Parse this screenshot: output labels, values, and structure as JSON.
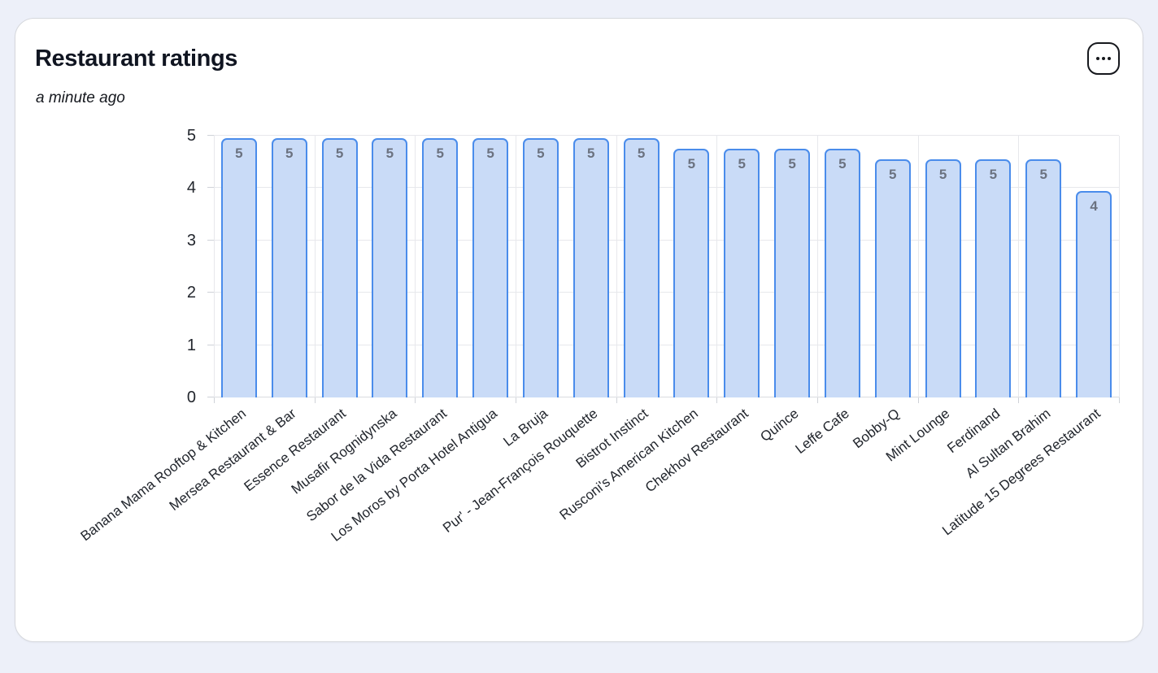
{
  "card": {
    "title": "Restaurant ratings",
    "subtitle": "a minute ago",
    "menu_icon": "ellipsis-icon"
  },
  "chart_data": {
    "type": "bar",
    "title": "Restaurant ratings",
    "xlabel": "",
    "ylabel": "",
    "ylim": [
      0,
      5
    ],
    "yticks": [
      0,
      1,
      2,
      3,
      4,
      5
    ],
    "legend_position": "none",
    "grid": {
      "horizontal": "on, every 1 unit",
      "vertical": "on, every 2 categories"
    },
    "colors": {
      "bar_fill": "#c9dbf7",
      "bar_border": "#4a8ceb",
      "value_label": "#6b7280",
      "gridline": "#e7e8ec",
      "axis_text": "#22262d"
    },
    "categories": [
      "Banana Mama Rooftop & Kitchen",
      "Mersea Restaurant & Bar",
      "Essence Restaurant",
      "Musafir Rognidynska",
      "Sabor de la Vida Restaurant",
      "Los Moros by Porta Hotel Antigua",
      "La Bruja",
      "Pur' - Jean-François Rouquette",
      "Bistrot Instinct",
      "Rusconi's American Kitchen",
      "Chekhov Restaurant",
      "Quince",
      "Leffe Cafe",
      "Bobby-Q",
      "Mint Lounge",
      "Ferdinand",
      "Al Sultan Brahim",
      "Latitude 15 Degrees Restaurant"
    ],
    "values": [
      4.95,
      4.95,
      4.95,
      4.95,
      4.95,
      4.95,
      4.95,
      4.95,
      4.95,
      4.75,
      4.75,
      4.75,
      4.75,
      4.55,
      4.55,
      4.55,
      4.55,
      3.95
    ],
    "value_labels": [
      "5",
      "5",
      "5",
      "5",
      "5",
      "5",
      "5",
      "5",
      "5",
      "5",
      "5",
      "5",
      "5",
      "5",
      "5",
      "5",
      "5",
      "4"
    ]
  }
}
